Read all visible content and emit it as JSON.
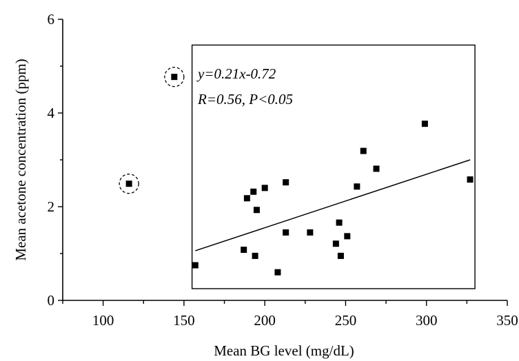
{
  "chart_data": {
    "type": "scatter",
    "title": "",
    "xlabel": "Mean BG level (mg/dL)",
    "ylabel": "Mean acetone concentration (ppm)",
    "xlim": [
      75,
      350
    ],
    "ylim": [
      0,
      6
    ],
    "x_ticks": [
      100,
      150,
      200,
      250,
      300,
      350
    ],
    "y_ticks": [
      0,
      2,
      4,
      6
    ],
    "grid": false,
    "annotations": [
      "y=0.21x-0.72",
      "R=0.56, P<0.05"
    ],
    "series": [
      {
        "points": [
          {
            "x": 157,
            "y": 0.75
          },
          {
            "x": 187,
            "y": 1.08
          },
          {
            "x": 189,
            "y": 2.18
          },
          {
            "x": 193,
            "y": 2.32
          },
          {
            "x": 194,
            "y": 0.95
          },
          {
            "x": 195,
            "y": 1.93
          },
          {
            "x": 200,
            "y": 2.4
          },
          {
            "x": 208,
            "y": 0.6
          },
          {
            "x": 213,
            "y": 2.52
          },
          {
            "x": 213,
            "y": 1.45
          },
          {
            "x": 228,
            "y": 1.45
          },
          {
            "x": 244,
            "y": 1.21
          },
          {
            "x": 246,
            "y": 1.66
          },
          {
            "x": 247,
            "y": 0.95
          },
          {
            "x": 251,
            "y": 1.37
          },
          {
            "x": 257,
            "y": 2.43
          },
          {
            "x": 261,
            "y": 3.19
          },
          {
            "x": 269,
            "y": 2.81
          },
          {
            "x": 299,
            "y": 3.77
          },
          {
            "x": 327,
            "y": 2.58
          }
        ]
      },
      {
        "points": [
          {
            "x": 116,
            "y": 2.49
          },
          {
            "x": 144,
            "y": 4.77
          }
        ]
      }
    ],
    "fit_line": {
      "x1": 157,
      "y1": 1.06,
      "x2": 327,
      "y2": 3.0
    },
    "inset_box": {
      "x": [
        155,
        330
      ],
      "y": [
        0.25,
        5.45
      ]
    }
  }
}
